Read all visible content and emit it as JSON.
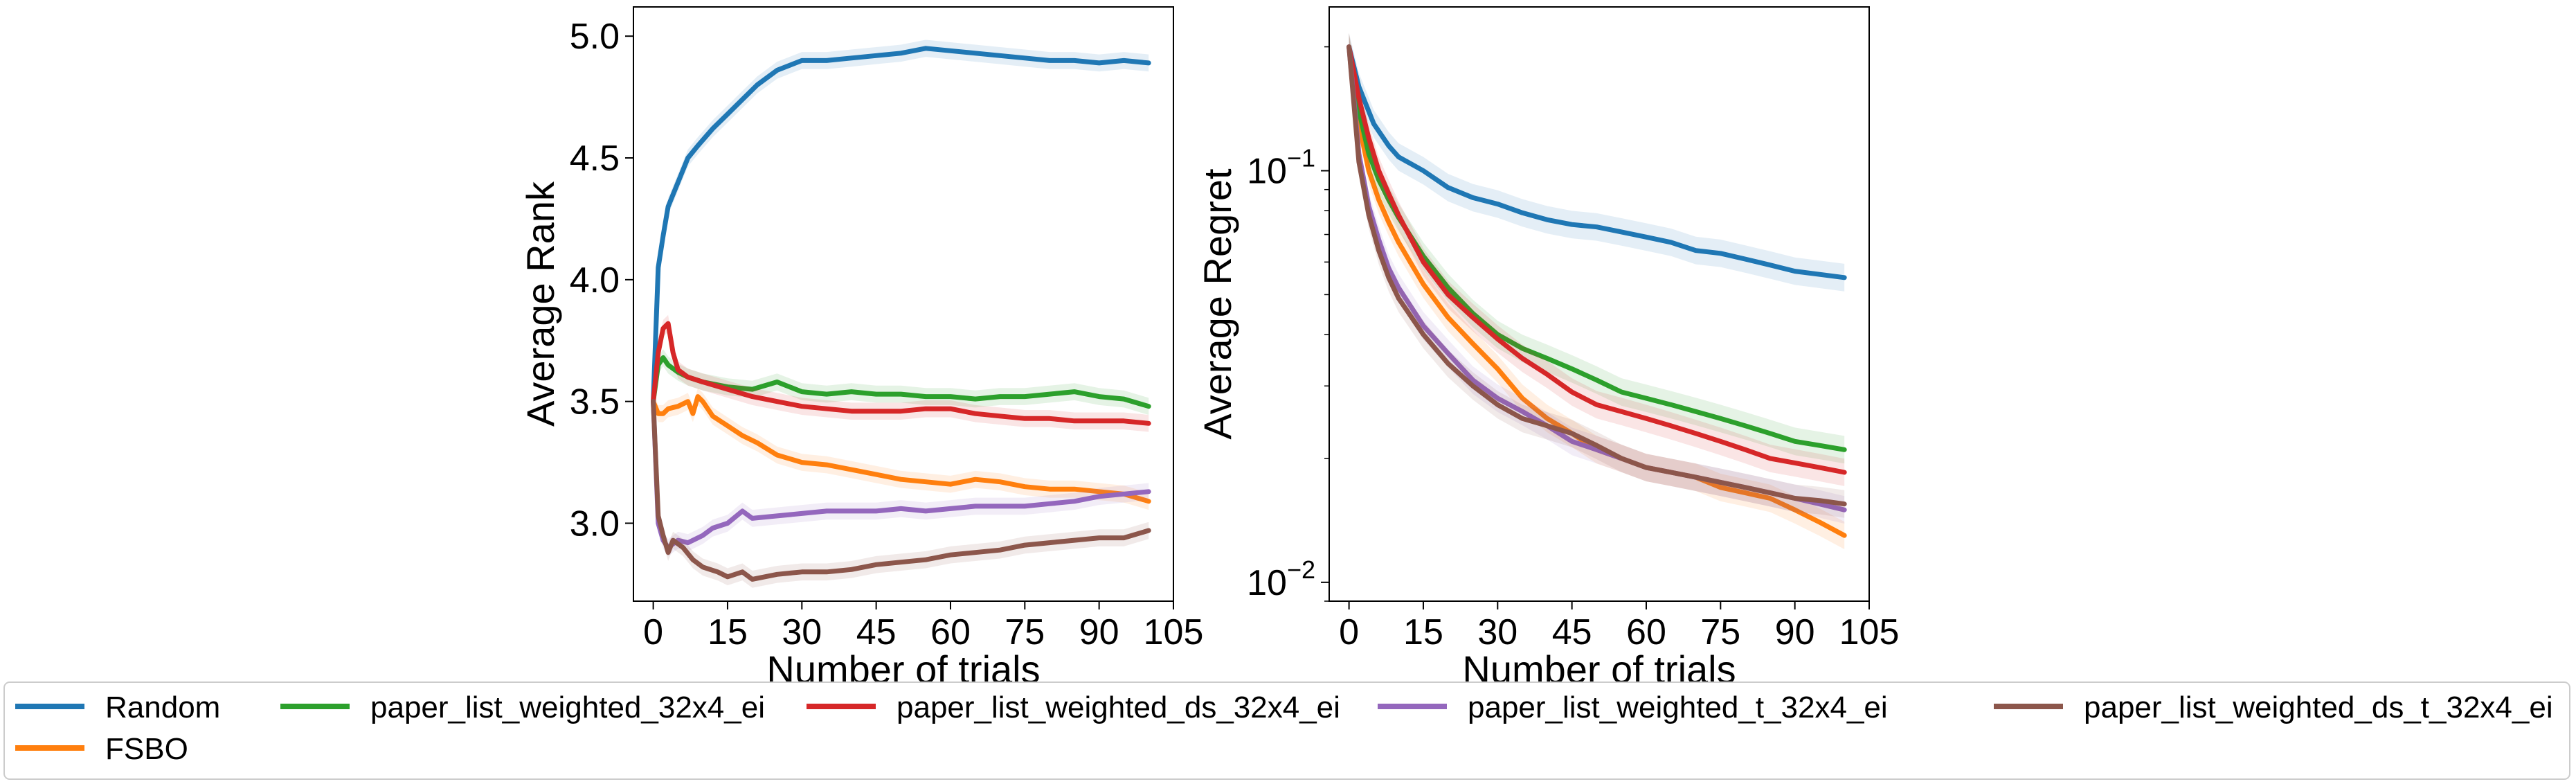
{
  "chart_data": [
    {
      "type": "line",
      "xlabel": "Number of trials",
      "ylabel": "Average Rank",
      "xlim": [
        -4,
        105
      ],
      "ylim": [
        2.68,
        5.12
      ],
      "xticks": [
        0,
        15,
        30,
        45,
        60,
        75,
        90,
        105
      ],
      "yticks": [
        3.0,
        3.5,
        4.0,
        4.5,
        5.0
      ],
      "ytick_labels": [
        "3.0",
        "3.5",
        "4.0",
        "4.5",
        "5.0"
      ],
      "y_scale": "linear",
      "grid": false,
      "series": [
        {
          "name": "Random",
          "color": "#1f77b4",
          "x": [
            0,
            1,
            2,
            3,
            5,
            7,
            9,
            12,
            15,
            18,
            21,
            25,
            30,
            35,
            40,
            45,
            50,
            55,
            60,
            65,
            70,
            75,
            80,
            85,
            90,
            95,
            100
          ],
          "y": [
            3.5,
            4.05,
            4.18,
            4.3,
            4.4,
            4.5,
            4.55,
            4.62,
            4.68,
            4.74,
            4.8,
            4.86,
            4.9,
            4.9,
            4.91,
            4.92,
            4.93,
            4.95,
            4.94,
            4.93,
            4.92,
            4.91,
            4.9,
            4.9,
            4.89,
            4.9,
            4.89
          ]
        },
        {
          "name": "FSBO",
          "color": "#ff7f0e",
          "x": [
            0,
            1,
            2,
            3,
            5,
            7,
            8,
            9,
            10,
            12,
            15,
            18,
            21,
            25,
            30,
            35,
            40,
            45,
            50,
            55,
            60,
            65,
            70,
            75,
            80,
            85,
            90,
            95,
            100
          ],
          "y": [
            3.5,
            3.45,
            3.45,
            3.47,
            3.48,
            3.5,
            3.45,
            3.52,
            3.5,
            3.44,
            3.4,
            3.36,
            3.33,
            3.28,
            3.25,
            3.24,
            3.22,
            3.2,
            3.18,
            3.17,
            3.16,
            3.18,
            3.17,
            3.15,
            3.14,
            3.14,
            3.13,
            3.12,
            3.09
          ]
        },
        {
          "name": "paper_list_weighted_32x4_ei",
          "color": "#2ca02c",
          "x": [
            0,
            1,
            2,
            3,
            5,
            7,
            10,
            15,
            20,
            25,
            30,
            35,
            40,
            45,
            50,
            55,
            60,
            65,
            70,
            75,
            80,
            85,
            90,
            95,
            100
          ],
          "y": [
            3.5,
            3.65,
            3.68,
            3.65,
            3.62,
            3.6,
            3.58,
            3.56,
            3.55,
            3.58,
            3.54,
            3.53,
            3.54,
            3.53,
            3.53,
            3.52,
            3.52,
            3.51,
            3.52,
            3.52,
            3.53,
            3.54,
            3.52,
            3.51,
            3.48
          ]
        },
        {
          "name": "paper_list_weighted_ds_32x4_ei",
          "color": "#d62728",
          "x": [
            0,
            1,
            2,
            3,
            4,
            5,
            7,
            10,
            15,
            20,
            25,
            30,
            35,
            40,
            45,
            50,
            55,
            60,
            65,
            70,
            75,
            80,
            85,
            90,
            95,
            100
          ],
          "y": [
            3.5,
            3.7,
            3.8,
            3.82,
            3.7,
            3.63,
            3.6,
            3.58,
            3.55,
            3.52,
            3.5,
            3.48,
            3.47,
            3.46,
            3.46,
            3.46,
            3.47,
            3.47,
            3.45,
            3.44,
            3.43,
            3.43,
            3.42,
            3.42,
            3.42,
            3.41
          ]
        },
        {
          "name": "paper_list_weighted_t_32x4_ei",
          "color": "#9467bd",
          "x": [
            0,
            1,
            2,
            3,
            5,
            7,
            10,
            12,
            15,
            18,
            20,
            25,
            30,
            35,
            40,
            45,
            50,
            55,
            60,
            65,
            70,
            75,
            80,
            85,
            90,
            95,
            100
          ],
          "y": [
            3.5,
            3.0,
            2.93,
            2.9,
            2.93,
            2.92,
            2.95,
            2.98,
            3.0,
            3.05,
            3.02,
            3.03,
            3.04,
            3.05,
            3.05,
            3.05,
            3.06,
            3.05,
            3.06,
            3.07,
            3.07,
            3.07,
            3.08,
            3.09,
            3.11,
            3.12,
            3.13
          ]
        },
        {
          "name": "paper_list_weighted_ds_t_32x4_ei",
          "color": "#8c564b",
          "x": [
            0,
            1,
            2,
            3,
            4,
            6,
            8,
            10,
            13,
            15,
            18,
            20,
            25,
            30,
            35,
            40,
            45,
            50,
            55,
            60,
            65,
            70,
            75,
            80,
            85,
            90,
            95,
            100
          ],
          "y": [
            3.5,
            3.03,
            2.95,
            2.88,
            2.93,
            2.9,
            2.85,
            2.82,
            2.8,
            2.78,
            2.8,
            2.77,
            2.79,
            2.8,
            2.8,
            2.81,
            2.83,
            2.84,
            2.85,
            2.87,
            2.88,
            2.89,
            2.91,
            2.92,
            2.93,
            2.94,
            2.94,
            2.97
          ]
        }
      ]
    },
    {
      "type": "line",
      "xlabel": "Number of trials",
      "ylabel": "Average Regret",
      "xlim": [
        -4,
        105
      ],
      "ylim": [
        0.009,
        0.25
      ],
      "xticks": [
        0,
        15,
        30,
        45,
        60,
        75,
        90,
        105
      ],
      "y_scale": "log",
      "yticks": [
        0.01,
        0.1
      ],
      "ytick_labels": [
        {
          "base": "10",
          "exp": "−2"
        },
        {
          "base": "10",
          "exp": "−1"
        }
      ],
      "grid": false,
      "series": [
        {
          "name": "Random",
          "color": "#1f77b4",
          "x": [
            0,
            2,
            5,
            8,
            10,
            15,
            20,
            25,
            30,
            35,
            40,
            45,
            50,
            55,
            60,
            65,
            70,
            75,
            80,
            85,
            90,
            95,
            100
          ],
          "y": [
            0.2,
            0.16,
            0.13,
            0.115,
            0.108,
            0.1,
            0.091,
            0.086,
            0.083,
            0.079,
            0.076,
            0.074,
            0.073,
            0.071,
            0.069,
            0.067,
            0.064,
            0.063,
            0.061,
            0.059,
            0.057,
            0.056,
            0.055
          ]
        },
        {
          "name": "FSBO",
          "color": "#ff7f0e",
          "x": [
            0,
            2,
            4,
            6,
            8,
            10,
            15,
            20,
            25,
            30,
            35,
            40,
            45,
            50,
            55,
            60,
            65,
            70,
            75,
            80,
            85,
            90,
            95,
            100
          ],
          "y": [
            0.2,
            0.13,
            0.1,
            0.085,
            0.075,
            0.067,
            0.053,
            0.044,
            0.038,
            0.033,
            0.028,
            0.025,
            0.023,
            0.021,
            0.02,
            0.019,
            0.0185,
            0.018,
            0.017,
            0.0165,
            0.016,
            0.015,
            0.014,
            0.013
          ]
        },
        {
          "name": "paper_list_weighted_32x4_ei",
          "color": "#2ca02c",
          "x": [
            0,
            2,
            4,
            6,
            8,
            10,
            15,
            20,
            25,
            30,
            35,
            40,
            45,
            50,
            55,
            60,
            65,
            70,
            75,
            80,
            85,
            90,
            95,
            100
          ],
          "y": [
            0.2,
            0.14,
            0.11,
            0.095,
            0.085,
            0.077,
            0.062,
            0.052,
            0.045,
            0.04,
            0.037,
            0.035,
            0.033,
            0.031,
            0.029,
            0.028,
            0.027,
            0.026,
            0.025,
            0.024,
            0.023,
            0.022,
            0.0215,
            0.021
          ]
        },
        {
          "name": "paper_list_weighted_ds_32x4_ei",
          "color": "#d62728",
          "x": [
            0,
            2,
            4,
            6,
            8,
            10,
            15,
            20,
            25,
            30,
            35,
            40,
            45,
            50,
            55,
            60,
            65,
            70,
            75,
            80,
            85,
            90,
            95,
            100
          ],
          "y": [
            0.2,
            0.15,
            0.12,
            0.1,
            0.088,
            0.078,
            0.06,
            0.05,
            0.044,
            0.039,
            0.035,
            0.032,
            0.029,
            0.027,
            0.026,
            0.025,
            0.024,
            0.023,
            0.022,
            0.021,
            0.02,
            0.0195,
            0.019,
            0.0185
          ]
        },
        {
          "name": "paper_list_weighted_t_32x4_ei",
          "color": "#9467bd",
          "x": [
            0,
            2,
            4,
            6,
            8,
            10,
            15,
            20,
            25,
            30,
            35,
            40,
            45,
            50,
            55,
            60,
            65,
            70,
            75,
            80,
            85,
            90,
            95,
            100
          ],
          "y": [
            0.2,
            0.11,
            0.082,
            0.068,
            0.058,
            0.052,
            0.042,
            0.036,
            0.031,
            0.028,
            0.026,
            0.024,
            0.022,
            0.021,
            0.02,
            0.019,
            0.0185,
            0.018,
            0.0175,
            0.017,
            0.0165,
            0.016,
            0.0155,
            0.015
          ]
        },
        {
          "name": "paper_list_weighted_ds_t_32x4_ei",
          "color": "#8c564b",
          "x": [
            0,
            2,
            4,
            6,
            8,
            10,
            15,
            20,
            25,
            30,
            35,
            40,
            45,
            50,
            55,
            60,
            65,
            70,
            75,
            80,
            85,
            90,
            95,
            100
          ],
          "y": [
            0.2,
            0.105,
            0.078,
            0.064,
            0.055,
            0.049,
            0.04,
            0.034,
            0.03,
            0.027,
            0.025,
            0.024,
            0.023,
            0.0215,
            0.02,
            0.019,
            0.0185,
            0.018,
            0.0175,
            0.017,
            0.0165,
            0.016,
            0.0158,
            0.0155
          ]
        }
      ]
    }
  ],
  "legend": {
    "placement": "bottom",
    "entries": [
      {
        "label": "Random",
        "color": "#1f77b4"
      },
      {
        "label": "FSBO",
        "color": "#ff7f0e"
      },
      {
        "label": "paper_list_weighted_32x4_ei",
        "color": "#2ca02c"
      },
      {
        "label": "paper_list_weighted_ds_32x4_ei",
        "color": "#d62728"
      },
      {
        "label": "paper_list_weighted_t_32x4_ei",
        "color": "#9467bd"
      },
      {
        "label": "paper_list_weighted_ds_t_32x4_ei",
        "color": "#8c564b"
      }
    ]
  }
}
